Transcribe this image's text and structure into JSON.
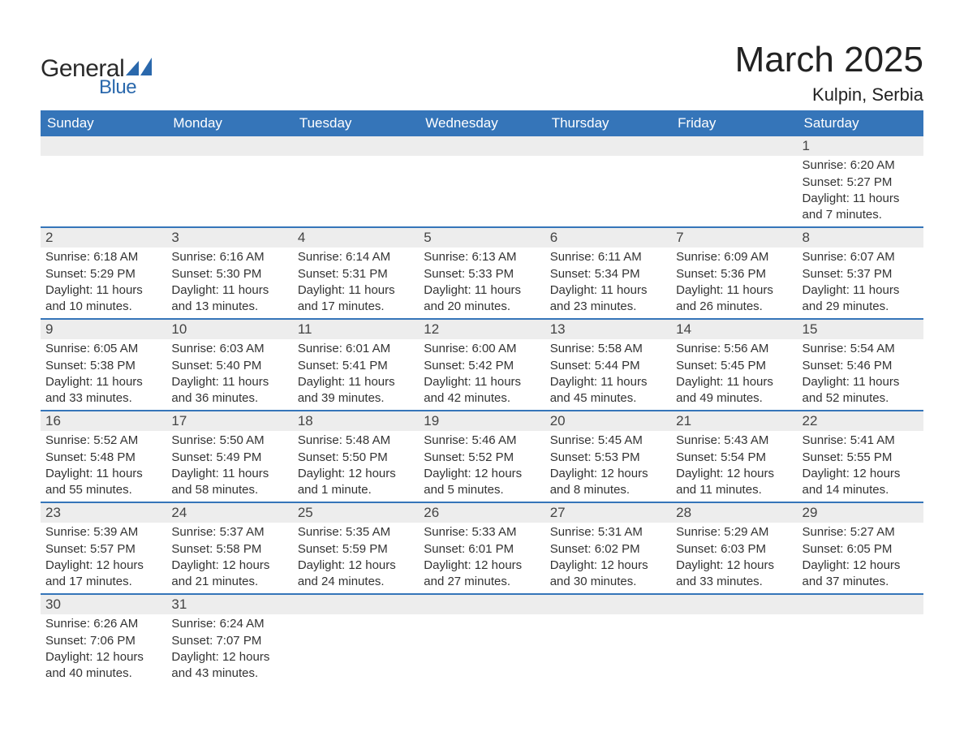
{
  "brand": {
    "text_general": "General",
    "text_blue": "Blue",
    "shape_color": "#2a68ac"
  },
  "header": {
    "month_title": "March 2025",
    "location": "Kulpin, Serbia"
  },
  "colors": {
    "header_bg": "#3575b9",
    "header_text": "#ffffff",
    "daynum_bg": "#ededed",
    "body_text": "#333333",
    "row_sep": "#3575b9",
    "page_bg": "#ffffff"
  },
  "calendar": {
    "day_labels": [
      "Sunday",
      "Monday",
      "Tuesday",
      "Wednesday",
      "Thursday",
      "Friday",
      "Saturday"
    ],
    "weeks": [
      [
        null,
        null,
        null,
        null,
        null,
        null,
        {
          "n": "1",
          "sunrise": "Sunrise: 6:20 AM",
          "sunset": "Sunset: 5:27 PM",
          "daylight": "Daylight: 11 hours and 7 minutes."
        }
      ],
      [
        {
          "n": "2",
          "sunrise": "Sunrise: 6:18 AM",
          "sunset": "Sunset: 5:29 PM",
          "daylight": "Daylight: 11 hours and 10 minutes."
        },
        {
          "n": "3",
          "sunrise": "Sunrise: 6:16 AM",
          "sunset": "Sunset: 5:30 PM",
          "daylight": "Daylight: 11 hours and 13 minutes."
        },
        {
          "n": "4",
          "sunrise": "Sunrise: 6:14 AM",
          "sunset": "Sunset: 5:31 PM",
          "daylight": "Daylight: 11 hours and 17 minutes."
        },
        {
          "n": "5",
          "sunrise": "Sunrise: 6:13 AM",
          "sunset": "Sunset: 5:33 PM",
          "daylight": "Daylight: 11 hours and 20 minutes."
        },
        {
          "n": "6",
          "sunrise": "Sunrise: 6:11 AM",
          "sunset": "Sunset: 5:34 PM",
          "daylight": "Daylight: 11 hours and 23 minutes."
        },
        {
          "n": "7",
          "sunrise": "Sunrise: 6:09 AM",
          "sunset": "Sunset: 5:36 PM",
          "daylight": "Daylight: 11 hours and 26 minutes."
        },
        {
          "n": "8",
          "sunrise": "Sunrise: 6:07 AM",
          "sunset": "Sunset: 5:37 PM",
          "daylight": "Daylight: 11 hours and 29 minutes."
        }
      ],
      [
        {
          "n": "9",
          "sunrise": "Sunrise: 6:05 AM",
          "sunset": "Sunset: 5:38 PM",
          "daylight": "Daylight: 11 hours and 33 minutes."
        },
        {
          "n": "10",
          "sunrise": "Sunrise: 6:03 AM",
          "sunset": "Sunset: 5:40 PM",
          "daylight": "Daylight: 11 hours and 36 minutes."
        },
        {
          "n": "11",
          "sunrise": "Sunrise: 6:01 AM",
          "sunset": "Sunset: 5:41 PM",
          "daylight": "Daylight: 11 hours and 39 minutes."
        },
        {
          "n": "12",
          "sunrise": "Sunrise: 6:00 AM",
          "sunset": "Sunset: 5:42 PM",
          "daylight": "Daylight: 11 hours and 42 minutes."
        },
        {
          "n": "13",
          "sunrise": "Sunrise: 5:58 AM",
          "sunset": "Sunset: 5:44 PM",
          "daylight": "Daylight: 11 hours and 45 minutes."
        },
        {
          "n": "14",
          "sunrise": "Sunrise: 5:56 AM",
          "sunset": "Sunset: 5:45 PM",
          "daylight": "Daylight: 11 hours and 49 minutes."
        },
        {
          "n": "15",
          "sunrise": "Sunrise: 5:54 AM",
          "sunset": "Sunset: 5:46 PM",
          "daylight": "Daylight: 11 hours and 52 minutes."
        }
      ],
      [
        {
          "n": "16",
          "sunrise": "Sunrise: 5:52 AM",
          "sunset": "Sunset: 5:48 PM",
          "daylight": "Daylight: 11 hours and 55 minutes."
        },
        {
          "n": "17",
          "sunrise": "Sunrise: 5:50 AM",
          "sunset": "Sunset: 5:49 PM",
          "daylight": "Daylight: 11 hours and 58 minutes."
        },
        {
          "n": "18",
          "sunrise": "Sunrise: 5:48 AM",
          "sunset": "Sunset: 5:50 PM",
          "daylight": "Daylight: 12 hours and 1 minute."
        },
        {
          "n": "19",
          "sunrise": "Sunrise: 5:46 AM",
          "sunset": "Sunset: 5:52 PM",
          "daylight": "Daylight: 12 hours and 5 minutes."
        },
        {
          "n": "20",
          "sunrise": "Sunrise: 5:45 AM",
          "sunset": "Sunset: 5:53 PM",
          "daylight": "Daylight: 12 hours and 8 minutes."
        },
        {
          "n": "21",
          "sunrise": "Sunrise: 5:43 AM",
          "sunset": "Sunset: 5:54 PM",
          "daylight": "Daylight: 12 hours and 11 minutes."
        },
        {
          "n": "22",
          "sunrise": "Sunrise: 5:41 AM",
          "sunset": "Sunset: 5:55 PM",
          "daylight": "Daylight: 12 hours and 14 minutes."
        }
      ],
      [
        {
          "n": "23",
          "sunrise": "Sunrise: 5:39 AM",
          "sunset": "Sunset: 5:57 PM",
          "daylight": "Daylight: 12 hours and 17 minutes."
        },
        {
          "n": "24",
          "sunrise": "Sunrise: 5:37 AM",
          "sunset": "Sunset: 5:58 PM",
          "daylight": "Daylight: 12 hours and 21 minutes."
        },
        {
          "n": "25",
          "sunrise": "Sunrise: 5:35 AM",
          "sunset": "Sunset: 5:59 PM",
          "daylight": "Daylight: 12 hours and 24 minutes."
        },
        {
          "n": "26",
          "sunrise": "Sunrise: 5:33 AM",
          "sunset": "Sunset: 6:01 PM",
          "daylight": "Daylight: 12 hours and 27 minutes."
        },
        {
          "n": "27",
          "sunrise": "Sunrise: 5:31 AM",
          "sunset": "Sunset: 6:02 PM",
          "daylight": "Daylight: 12 hours and 30 minutes."
        },
        {
          "n": "28",
          "sunrise": "Sunrise: 5:29 AM",
          "sunset": "Sunset: 6:03 PM",
          "daylight": "Daylight: 12 hours and 33 minutes."
        },
        {
          "n": "29",
          "sunrise": "Sunrise: 5:27 AM",
          "sunset": "Sunset: 6:05 PM",
          "daylight": "Daylight: 12 hours and 37 minutes."
        }
      ],
      [
        {
          "n": "30",
          "sunrise": "Sunrise: 6:26 AM",
          "sunset": "Sunset: 7:06 PM",
          "daylight": "Daylight: 12 hours and 40 minutes."
        },
        {
          "n": "31",
          "sunrise": "Sunrise: 6:24 AM",
          "sunset": "Sunset: 7:07 PM",
          "daylight": "Daylight: 12 hours and 43 minutes."
        },
        null,
        null,
        null,
        null,
        null
      ]
    ]
  }
}
